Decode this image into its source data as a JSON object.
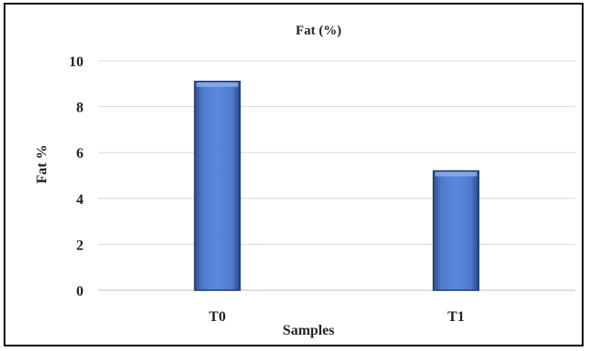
{
  "chart_data": {
    "type": "bar",
    "title": "Fat (%)",
    "xlabel": "Samples",
    "ylabel": "Fat %",
    "categories": [
      "T0",
      "T1"
    ],
    "values": [
      9.1,
      5.2
    ],
    "ylim": [
      0,
      10
    ],
    "yticks": [
      "0",
      "2",
      "4",
      "6",
      "8",
      "10"
    ],
    "grid": true,
    "bar_color": "#4472C4",
    "bar_edge_color": "#1F3864"
  }
}
